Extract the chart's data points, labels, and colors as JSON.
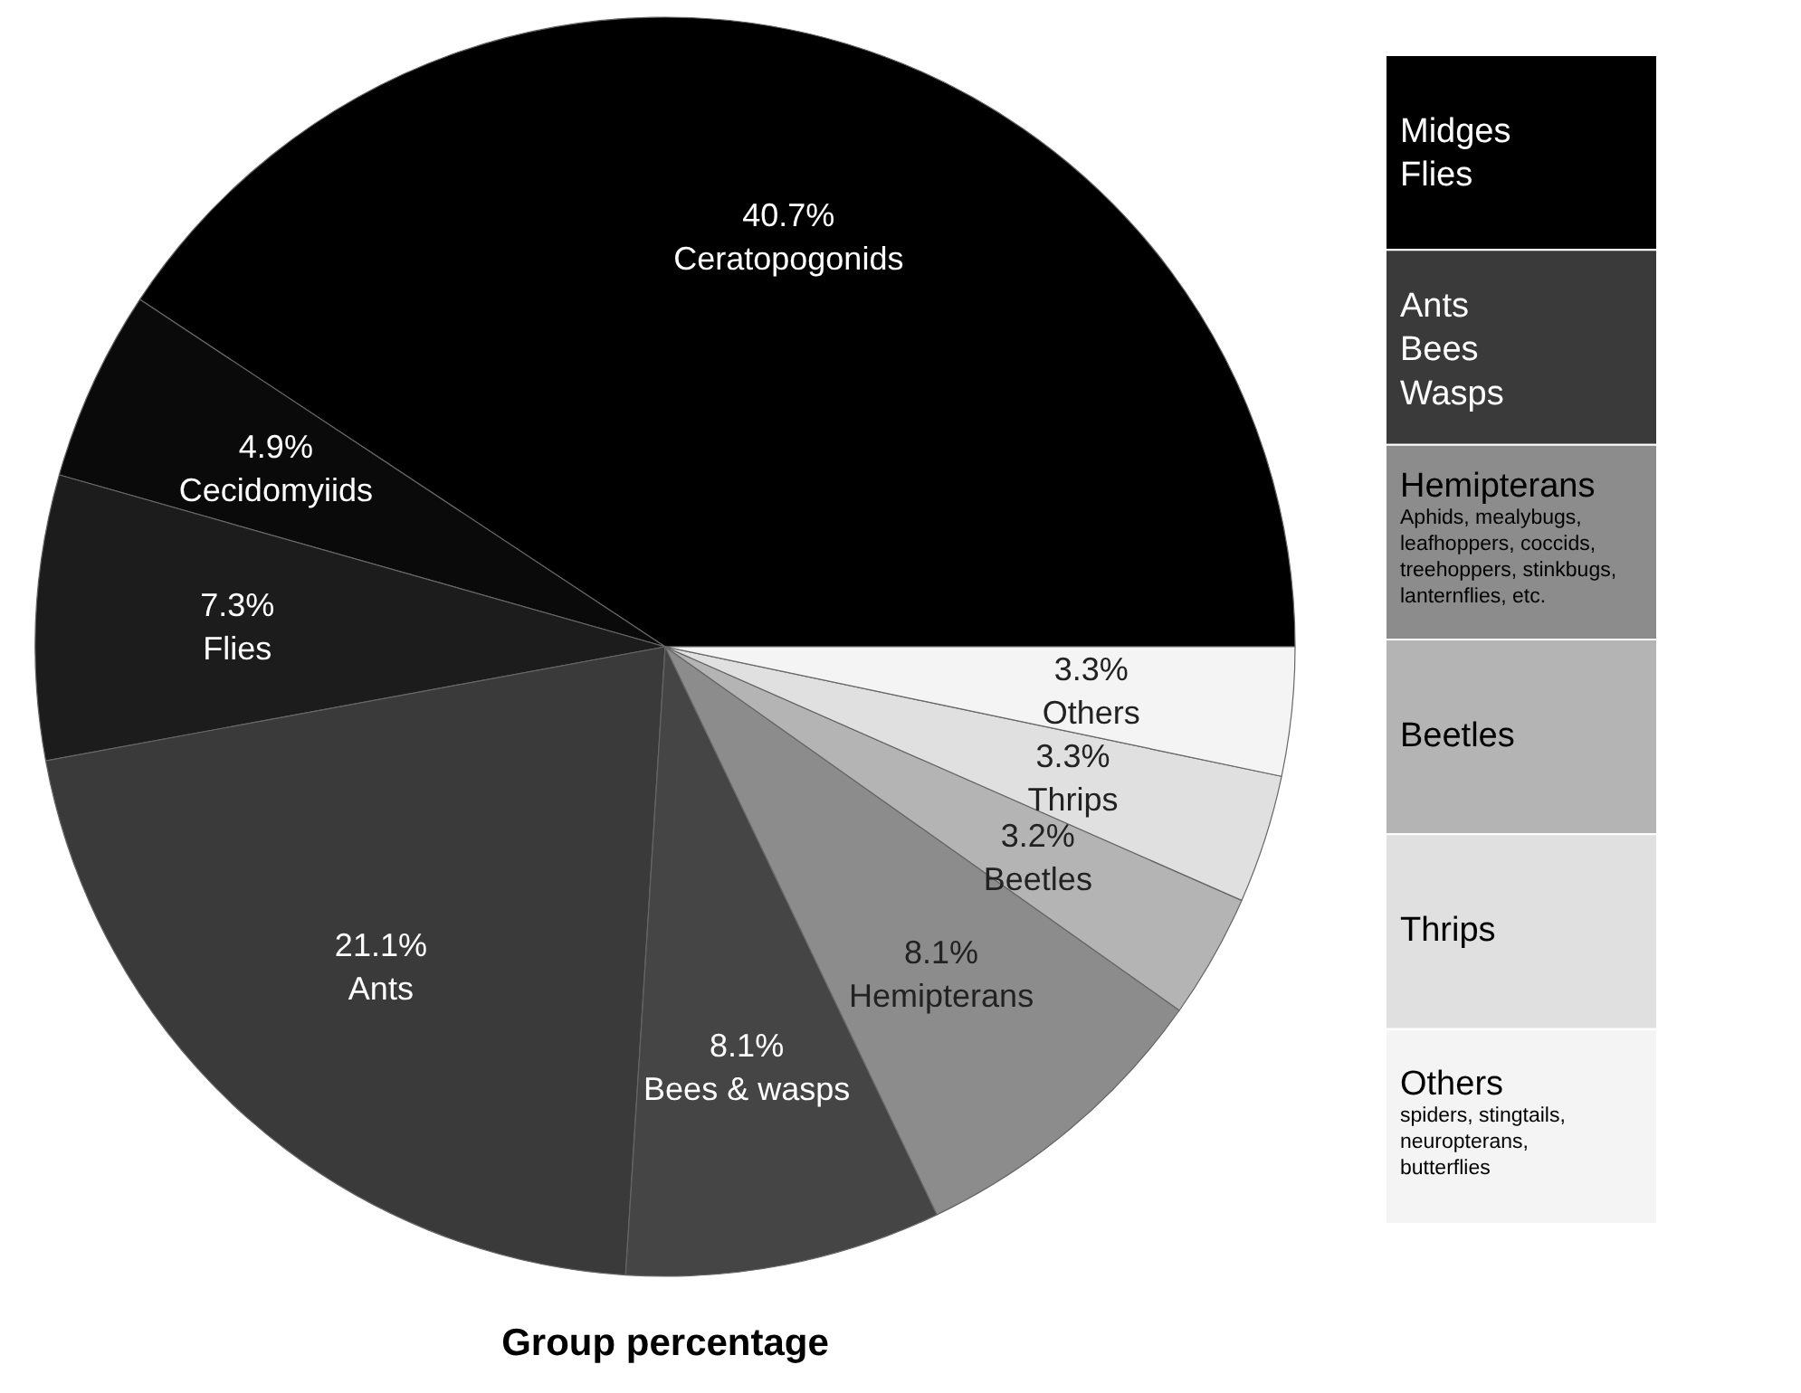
{
  "chart_data": {
    "type": "pie",
    "title": "Group percentage",
    "categories": [
      "Ceratopogonids",
      "Cecidomyiids",
      "Flies",
      "Ants",
      "Bees & wasps",
      "Hemipterans",
      "Beetles",
      "Thrips",
      "Others"
    ],
    "values": [
      40.7,
      4.9,
      7.3,
      21.1,
      8.1,
      8.1,
      3.2,
      3.3,
      3.3
    ],
    "value_labels": [
      "40.7%",
      "4.9%",
      "7.3%",
      "21.1%",
      "8.1%",
      "8.1%",
      "3.2%",
      "3.3%",
      "3.3%"
    ],
    "colors": [
      "#000000",
      "#0a0a0a",
      "#1c1c1c",
      "#3a3a3a",
      "#454545",
      "#8c8c8c",
      "#b4b4b4",
      "#e0e0e0",
      "#f4f4f4"
    ],
    "annotations": [
      "Midges\nFlies",
      "Ants\nBees\nWasps",
      "Hemipterans\n\nAphids, mealybugs,\nleafhoppers, coccids,\ntreehoppers, stinkbugs,\nlanternflies, etc.",
      "Beetles",
      "Thrips",
      "Others\n\nspiders, stingtails,\nneuropterans,\nbutterflies"
    ]
  }
}
